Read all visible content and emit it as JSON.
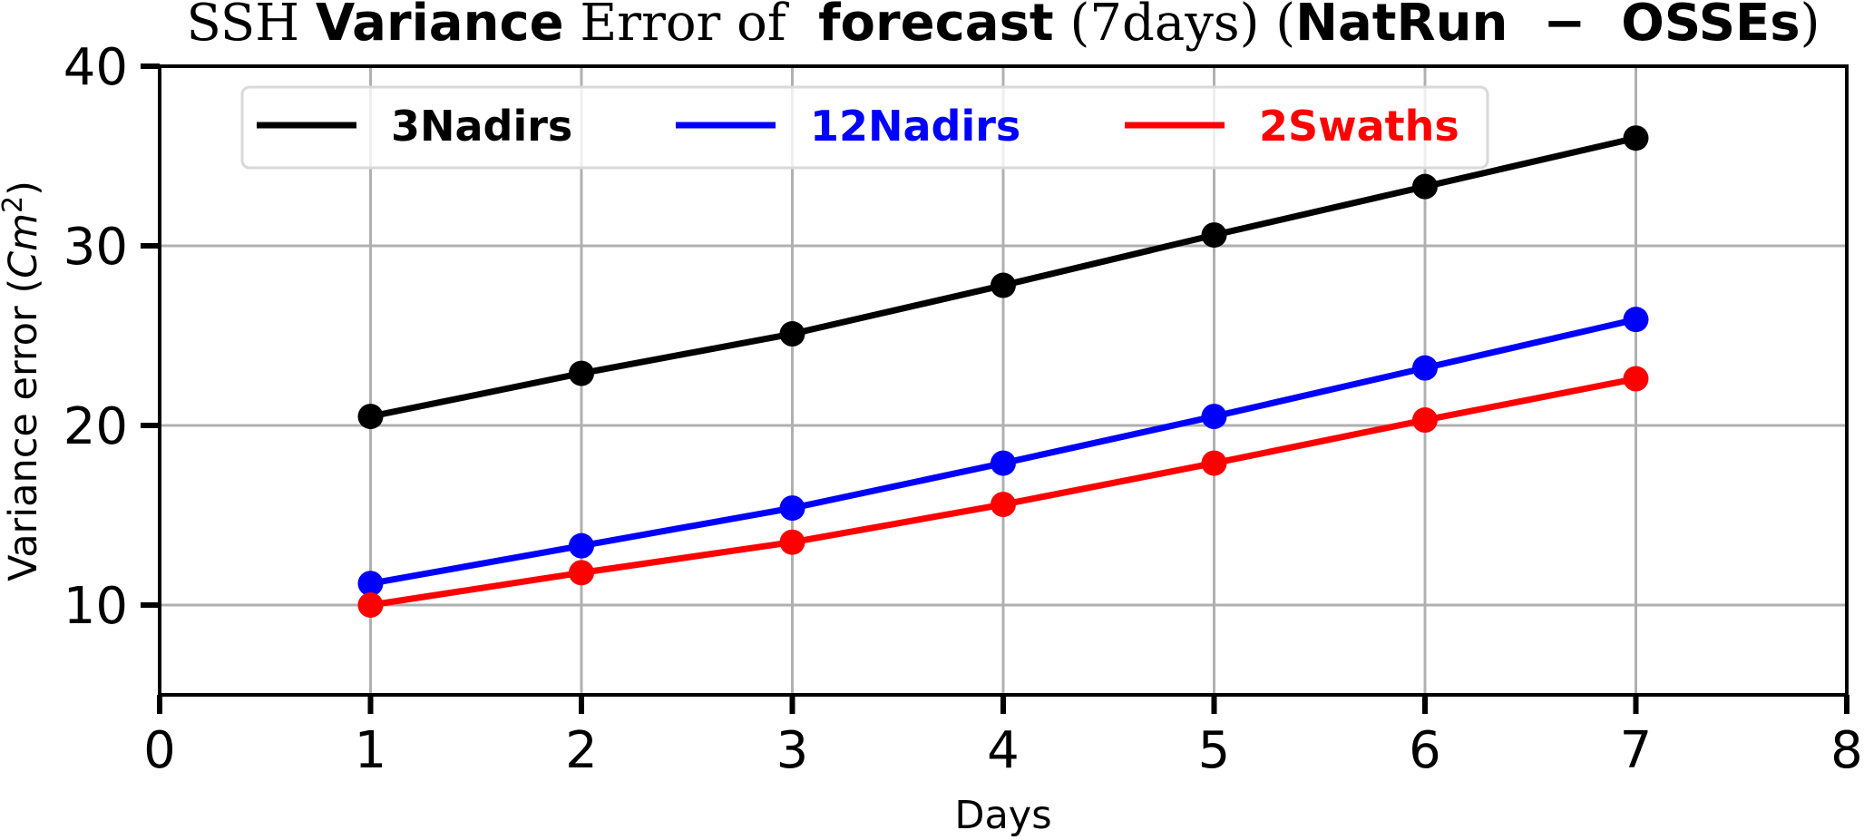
{
  "title": {
    "parts": [
      {
        "text": "SSH ",
        "style": "serif"
      },
      {
        "text": "Variance",
        "style": "bold"
      },
      {
        "text": " Error of  ",
        "style": "serif"
      },
      {
        "text": "forecast",
        "style": "bold"
      },
      {
        "text": " (7days) (",
        "style": "serif"
      },
      {
        "text": "NatRun  −  OSSEs",
        "style": "bold"
      },
      {
        "text": ")",
        "style": "serif"
      }
    ]
  },
  "chart_data": {
    "type": "line",
    "title": "SSH Variance Error of forecast (7days) (NatRun − OSSEs)",
    "xlabel": "Days",
    "ylabel": "Variance error (Cm²)",
    "ylabel_parts": {
      "main": "Variance error (",
      "math": "Cm",
      "sup": "2",
      "close": ")"
    },
    "x": [
      1,
      2,
      3,
      4,
      5,
      6,
      7
    ],
    "xlim": [
      0,
      8
    ],
    "ylim": [
      5,
      40
    ],
    "xticks": [
      0,
      1,
      2,
      3,
      4,
      5,
      6,
      7,
      8
    ],
    "yticks": [
      10,
      20,
      30,
      40
    ],
    "grid": true,
    "legend_position": "upper center, inside, 3 columns",
    "series": [
      {
        "name": "3Nadirs",
        "color": "#000000",
        "values": [
          20.5,
          22.9,
          25.1,
          27.8,
          30.6,
          33.3,
          36.0
        ]
      },
      {
        "name": "12Nadirs",
        "color": "#0000ff",
        "values": [
          11.2,
          13.3,
          15.4,
          17.9,
          20.5,
          23.2,
          25.9
        ]
      },
      {
        "name": "2Swaths",
        "color": "#ff0000",
        "values": [
          10.0,
          11.8,
          13.5,
          15.6,
          17.9,
          20.3,
          22.6
        ]
      }
    ]
  },
  "colors": {
    "grid": "#b0b0b0",
    "axis": "#000000",
    "legend_border": "#d9d9d9",
    "background": "#ffffff"
  }
}
